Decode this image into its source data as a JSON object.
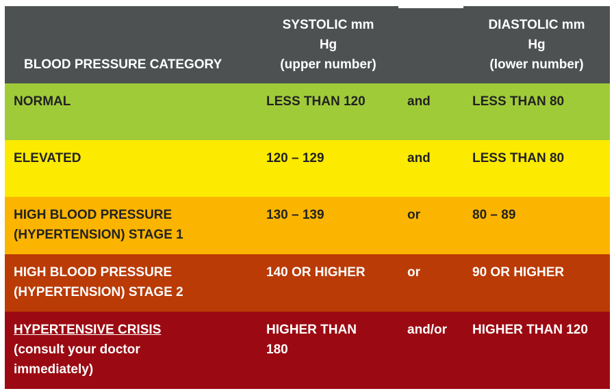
{
  "colors": {
    "header_bg": "#4d5152",
    "normal": "#a0cb39",
    "elevated": "#fcea00",
    "stage1": "#fbb400",
    "stage2": "#ba3b06",
    "crisis": "#9b0a12"
  },
  "header": {
    "category": "BLOOD PRESSURE CATEGORY",
    "systolic": [
      "SYSTOLIC mm",
      "Hg",
      "(upper number)"
    ],
    "diastolic": [
      "DIASTOLIC mm",
      "Hg",
      "(lower number)"
    ]
  },
  "rows": [
    {
      "category": [
        "NORMAL"
      ],
      "systolic": [
        "LESS THAN 120"
      ],
      "connector": "and",
      "diastolic": [
        "LESS THAN 80"
      ]
    },
    {
      "category": [
        "ELEVATED"
      ],
      "systolic": [
        "120 – 129"
      ],
      "connector": "and",
      "diastolic": [
        "LESS THAN 80"
      ]
    },
    {
      "category": [
        "HIGH BLOOD PRESSURE",
        "(HYPERTENSION) STAGE 1"
      ],
      "systolic": [
        "130 – 139"
      ],
      "connector": "or",
      "diastolic": [
        "80 – 89"
      ]
    },
    {
      "category": [
        "HIGH BLOOD PRESSURE",
        "(HYPERTENSION) STAGE 2"
      ],
      "systolic": [
        "140 OR HIGHER"
      ],
      "connector": "or",
      "diastolic": [
        "90 OR HIGHER"
      ]
    },
    {
      "category": [
        "HYPERTENSIVE CRISIS",
        "(consult your doctor",
        "immediately)"
      ],
      "systolic": [
        "HIGHER THAN",
        "180"
      ],
      "connector": "and/or",
      "diastolic": [
        "HIGHER THAN 120"
      ]
    }
  ]
}
